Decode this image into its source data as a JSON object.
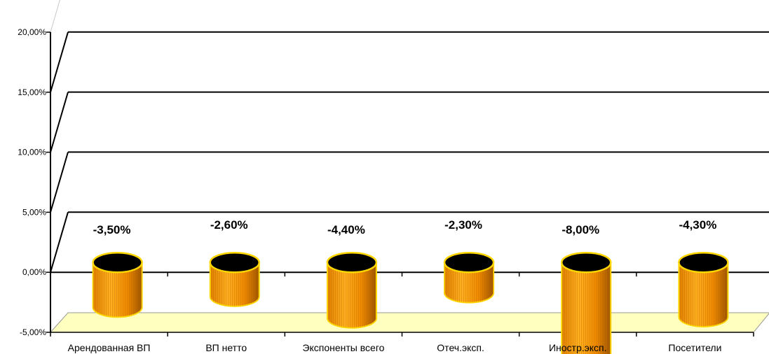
{
  "chart_data": {
    "type": "bar",
    "title": "",
    "xlabel": "",
    "ylabel": "",
    "categories": [
      "Арендованная ВП",
      "ВП нетто",
      "Экспоненты всего",
      "Отеч.эксп.",
      "Иностр.эксп.",
      "Посетители"
    ],
    "values": [
      -3.5,
      -2.6,
      -4.4,
      -2.3,
      -8.0,
      -4.3
    ],
    "data_labels": [
      "-3,50%",
      "-2,60%",
      "-4,40%",
      "-2,30%",
      "-8,00%",
      "-4,30%"
    ],
    "ylim": [
      -5,
      20
    ],
    "y_ticks": [
      -5,
      0,
      5,
      10,
      15,
      20
    ],
    "y_tick_labels": [
      "-5,00%",
      "0,00%",
      "5,00%",
      "10,00%",
      "15,00%",
      "20,00%"
    ],
    "grid": true,
    "legend": "none",
    "style": "3d-cylinder",
    "colors": {
      "bar": "#ff9900",
      "bar_dark": "#a85c00",
      "bar_top": "#000000",
      "bar_edge": "#ffd700",
      "floor": "#ffffc0"
    }
  }
}
